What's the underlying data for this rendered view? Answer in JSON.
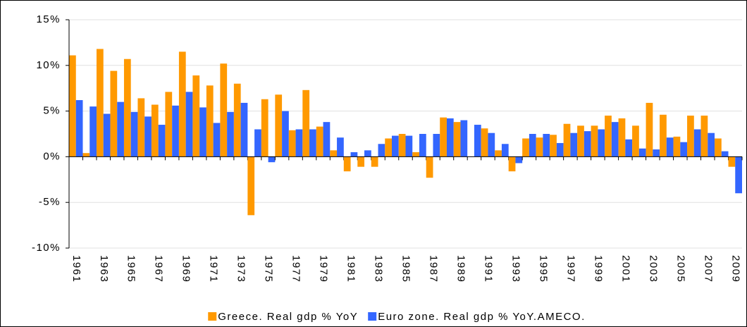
{
  "chart_data": {
    "type": "bar",
    "categories": [
      "1961",
      null,
      "1963",
      null,
      "1965",
      null,
      "1967",
      null,
      "1969",
      null,
      "1971",
      null,
      "1973",
      null,
      "1975",
      null,
      "1977",
      null,
      "1979",
      null,
      "1981",
      null,
      "1983",
      null,
      "1985",
      null,
      "1987",
      null,
      "1989",
      null,
      "1991",
      null,
      "1993",
      null,
      "1995",
      null,
      "1997",
      null,
      "1999",
      null,
      "2001",
      null,
      "2003",
      null,
      "2005",
      null,
      "2007",
      null,
      "2009"
    ],
    "series": [
      {
        "name": "Greece. Real gdp % YoY",
        "color": "#ff9900",
        "values": [
          11.1,
          0.4,
          11.8,
          9.4,
          10.7,
          6.4,
          5.7,
          7.1,
          11.5,
          8.9,
          7.8,
          10.2,
          8.0,
          -6.4,
          6.3,
          6.8,
          2.9,
          7.3,
          3.3,
          0.7,
          -1.6,
          -1.1,
          -1.1,
          2.0,
          2.5,
          0.5,
          -2.3,
          4.3,
          3.8,
          0.0,
          3.1,
          0.7,
          -1.6,
          2.0,
          2.1,
          2.4,
          3.6,
          3.4,
          3.4,
          4.5,
          4.2,
          3.4,
          5.9,
          4.6,
          2.2,
          4.5,
          4.5,
          2.0,
          -1.1
        ]
      },
      {
        "name": "Euro zone. Real gdp % YoY.AMECO.",
        "color": "#3366ff",
        "values": [
          6.2,
          5.5,
          4.7,
          6.0,
          4.9,
          4.4,
          3.5,
          5.6,
          7.1,
          5.4,
          3.7,
          4.9,
          5.9,
          3.0,
          -0.6,
          5.0,
          3.0,
          3.0,
          3.8,
          2.1,
          0.5,
          0.7,
          1.4,
          2.3,
          2.3,
          2.5,
          2.5,
          4.2,
          4.0,
          3.5,
          2.6,
          1.4,
          -0.7,
          2.5,
          2.5,
          1.5,
          2.6,
          2.8,
          3.0,
          3.8,
          1.9,
          0.9,
          0.8,
          2.1,
          1.6,
          3.0,
          2.6,
          0.6,
          -4.0
        ]
      }
    ],
    "ylim": [
      -10,
      15
    ],
    "yticks": [
      {
        "value": -10,
        "label": "-10%"
      },
      {
        "value": -5,
        "label": "-5%"
      },
      {
        "value": 0,
        "label": "0%"
      },
      {
        "value": 5,
        "label": "5%"
      },
      {
        "value": 10,
        "label": "10%"
      },
      {
        "value": 15,
        "label": "15%"
      }
    ],
    "grid": true,
    "legend": "bottom"
  }
}
